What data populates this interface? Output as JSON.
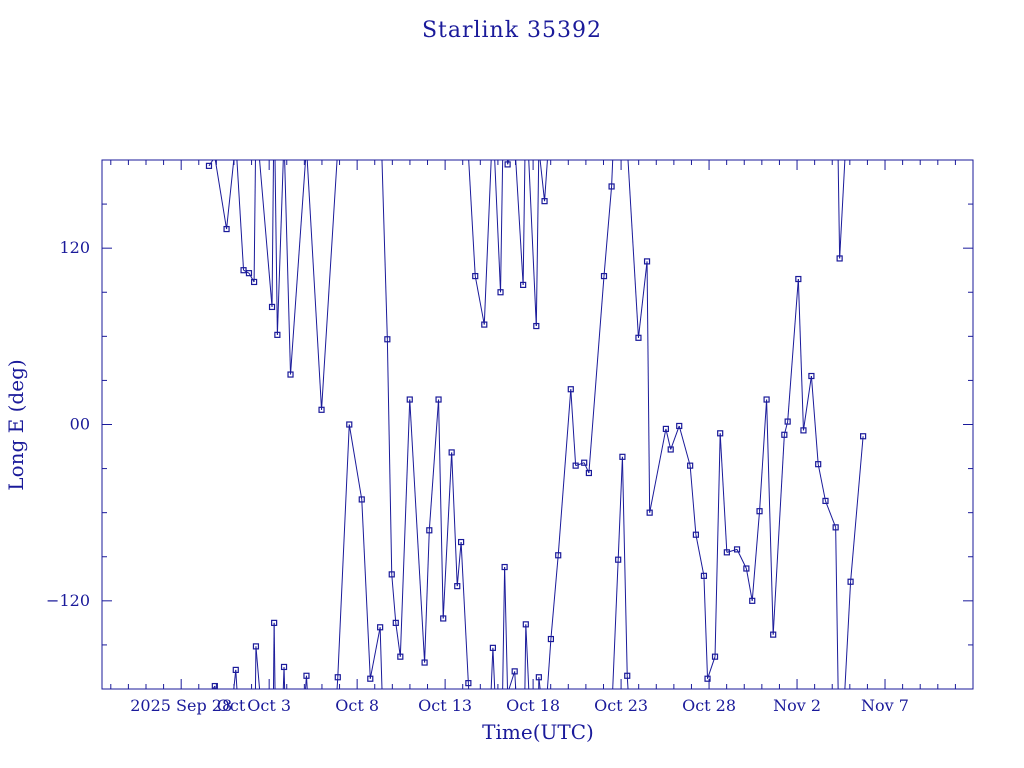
{
  "chart_data": {
    "type": "scatter",
    "title": "Starlink 35392",
    "xlabel": "Time(UTC)",
    "ylabel": "Long E (deg)",
    "xlim": [
      "2025-09-23T12:00",
      "2025-11-12T00:00"
    ],
    "ylim": [
      -180,
      180
    ],
    "yticks": [
      -120,
      0,
      120
    ],
    "ytick_labels": [
      "−120",
      "00",
      "120"
    ],
    "xticks": [
      "2025-09-28",
      "2025-10-03",
      "2025-10-08",
      "2025-10-13",
      "2025-10-18",
      "2025-10-23",
      "2025-10-28",
      "2025-11-02",
      "2025-11-07"
    ],
    "xtick_labels": [
      "2025 Sep 28",
      "Oct  3",
      "Oct  8",
      "Oct 13",
      "Oct 18",
      "Oct 23",
      "Oct 28",
      "Nov  2",
      "Nov  7"
    ],
    "extra_labels": [
      "Oct"
    ],
    "grid": false,
    "series": [
      {
        "x": [
          "2025-09-29T13:55",
          "2025-09-29T21:54",
          "2025-09-30T13:54",
          "2025-10-01T02:28",
          "2025-10-01T13:04",
          "2025-10-01T20:28",
          "2025-10-02T03:27",
          "2025-10-02T05:58",
          "2025-10-03T03:55",
          "2025-10-03T06:47",
          "2025-10-03T11:12",
          "2025-10-03T20:17",
          "2025-10-04T05:08",
          "2025-10-05T02:53",
          "2025-10-05T23:27",
          "2025-10-06T21:36",
          "2025-10-07T13:16",
          "2025-10-08T06:18",
          "2025-10-08T17:56",
          "2025-10-09T07:22",
          "2025-10-09T17:12",
          "2025-10-09T23:12",
          "2025-10-10T04:42",
          "2025-10-10T10:54",
          "2025-10-10T23:46",
          "2025-10-11T20:00",
          "2025-10-12T02:25",
          "2025-10-12T15:02",
          "2025-10-12T21:24",
          "2025-10-13T08:55",
          "2025-10-13T16:33",
          "2025-10-13T21:48",
          "2025-10-14T07:42",
          "2025-10-14T17:04",
          "2025-10-15T05:25",
          "2025-10-15T17:10",
          "2025-10-16T03:34",
          "2025-10-16T09:09",
          "2025-10-16T13:14",
          "2025-10-16T22:53",
          "2025-10-17T10:25",
          "2025-10-17T14:04",
          "2025-10-18T04:22",
          "2025-10-18T07:51",
          "2025-10-18T15:37",
          "2025-10-19T00:17",
          "2025-10-19T10:15",
          "2025-10-20T03:24",
          "2025-10-20T10:02",
          "2025-10-20T21:42",
          "2025-10-21T04:06",
          "2025-10-22T00:42",
          "2025-10-22T11:03",
          "2025-10-22T20:02",
          "2025-10-23T01:50",
          "2025-10-23T08:24",
          "2025-10-23T23:42",
          "2025-10-24T11:25",
          "2025-10-24T14:59",
          "2025-10-25T13:07",
          "2025-10-25T19:42",
          "2025-10-26T07:18",
          "2025-10-26T22:12",
          "2025-10-27T06:03",
          "2025-10-27T17:00",
          "2025-10-27T21:55",
          "2025-10-28T08:08",
          "2025-10-28T15:10",
          "2025-10-29T00:16",
          "2025-10-29T14:11",
          "2025-10-30T02:53",
          "2025-10-30T10:53",
          "2025-10-30T20:51",
          "2025-10-31T06:28",
          "2025-10-31T15:28",
          "2025-11-01T06:41",
          "2025-11-01T11:13",
          "2025-11-02T01:46",
          "2025-11-02T08:45",
          "2025-11-02T19:36",
          "2025-11-03T04:51",
          "2025-11-03T14:48",
          "2025-11-04T04:40",
          "2025-11-04T10:06",
          "2025-11-05T01:02",
          "2025-11-05T18:07"
        ],
        "y": [
          176,
          -178,
          133,
          -167,
          105,
          103,
          97,
          -151,
          80,
          -135,
          61,
          -165,
          34,
          -171,
          10,
          -172,
          0,
          -51,
          -173,
          -138,
          58,
          -102,
          -135,
          -158,
          17,
          -162,
          -72,
          17,
          -132,
          -19,
          -110,
          -80,
          -176,
          101,
          68,
          -152,
          90,
          -97,
          177,
          -168,
          95,
          -136,
          67,
          -172,
          152,
          -146,
          -89,
          24,
          -28,
          -26,
          -33,
          101,
          162,
          -92,
          -22,
          -171,
          59,
          111,
          -60,
          -3,
          -17,
          -1,
          -28,
          -75,
          -103,
          -173,
          -158,
          -6,
          -87,
          -85,
          -98,
          -120,
          -59,
          17,
          -143,
          -7,
          2,
          99,
          -4,
          33,
          -27,
          -52,
          -70,
          113,
          -107,
          -8
        ],
        "y_source_note_removed": true
      }
    ]
  }
}
